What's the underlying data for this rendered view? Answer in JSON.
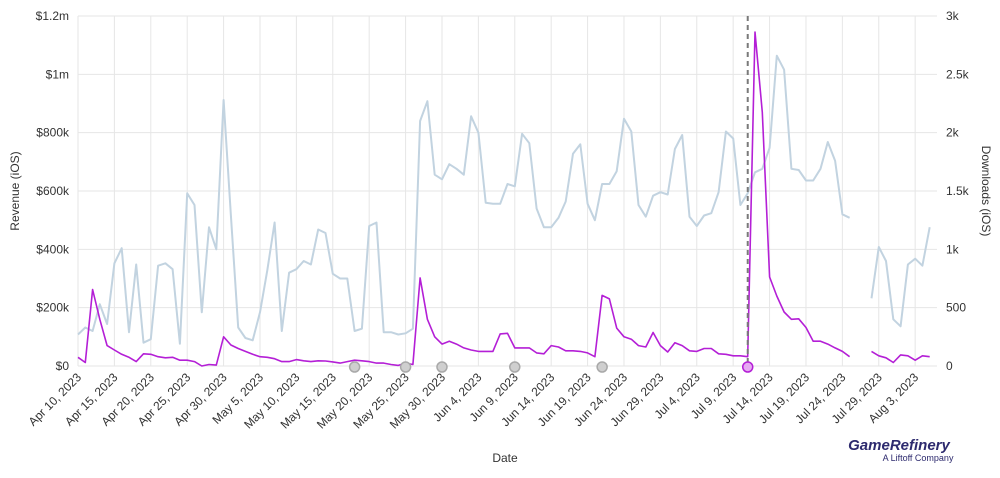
{
  "chart_data": {
    "type": "line",
    "xlabel": "Date",
    "ylabel_left": "Revenue (iOS)",
    "ylabel_right": "Downloads (iOS)",
    "y_left_ticks": [
      "$0",
      "$200k",
      "$400k",
      "$600k",
      "$800k",
      "$1m",
      "$1.2m"
    ],
    "y_left_range": [
      0,
      1200000
    ],
    "y_right_ticks": [
      "0",
      "500",
      "1k",
      "1.5k",
      "2k",
      "2.5k",
      "3k"
    ],
    "y_right_range": [
      0,
      3000
    ],
    "grid": true,
    "x_ticks": [
      "Apr 10, 2023",
      "Apr 15, 2023",
      "Apr 20, 2023",
      "Apr 25, 2023",
      "Apr 30, 2023",
      "May 5, 2023",
      "May 10, 2023",
      "May 15, 2023",
      "May 20, 2023",
      "May 25, 2023",
      "May 30, 2023",
      "Jun 4, 2023",
      "Jun 9, 2023",
      "Jun 14, 2023",
      "Jun 19, 2023",
      "Jun 24, 2023",
      "Jun 29, 2023",
      "Jul 4, 2023",
      "Jul 9, 2023",
      "Jul 14, 2023",
      "Jul 19, 2023",
      "Jul 24, 2023",
      "Jul 29, 2023",
      "Aug 3, 2023"
    ],
    "x_range": [
      "2023-04-10",
      "2023-08-06"
    ],
    "marker_line_date": "2023-07-11",
    "event_dates": [
      "2023-05-18",
      "2023-05-25",
      "2023-05-30",
      "2023-06-09",
      "2023-06-21"
    ],
    "highlighted_event_date": "2023-07-11",
    "series": [
      {
        "name": "Downloads (iOS)",
        "axis": "right",
        "color": "#c2d3e0",
        "points": [
          [
            "2023-04-10",
            270
          ],
          [
            "2023-04-11",
            330
          ],
          [
            "2023-04-12",
            300
          ],
          [
            "2023-04-13",
            530
          ],
          [
            "2023-04-14",
            360
          ],
          [
            "2023-04-15",
            880
          ],
          [
            "2023-04-16",
            1010
          ],
          [
            "2023-04-17",
            290
          ],
          [
            "2023-04-18",
            870
          ],
          [
            "2023-04-19",
            200
          ],
          [
            "2023-04-20",
            230
          ],
          [
            "2023-04-21",
            860
          ],
          [
            "2023-04-22",
            880
          ],
          [
            "2023-04-23",
            830
          ],
          [
            "2023-04-24",
            190
          ],
          [
            "2023-04-25",
            1480
          ],
          [
            "2023-04-26",
            1380
          ],
          [
            "2023-04-27",
            460
          ],
          [
            "2023-04-28",
            1190
          ],
          [
            "2023-04-29",
            1000
          ],
          [
            "2023-04-30",
            2280
          ],
          [
            "2023-05-01",
            1290
          ],
          [
            "2023-05-02",
            330
          ],
          [
            "2023-05-03",
            240
          ],
          [
            "2023-05-04",
            220
          ],
          [
            "2023-05-05",
            460
          ],
          [
            "2023-05-06",
            820
          ],
          [
            "2023-05-07",
            1230
          ],
          [
            "2023-05-08",
            300
          ],
          [
            "2023-05-09",
            800
          ],
          [
            "2023-05-10",
            830
          ],
          [
            "2023-05-11",
            900
          ],
          [
            "2023-05-12",
            870
          ],
          [
            "2023-05-13",
            1170
          ],
          [
            "2023-05-14",
            1140
          ],
          [
            "2023-05-15",
            790
          ],
          [
            "2023-05-16",
            750
          ],
          [
            "2023-05-17",
            750
          ],
          [
            "2023-05-18",
            300
          ],
          [
            "2023-05-19",
            320
          ],
          [
            "2023-05-20",
            1200
          ],
          [
            "2023-05-21",
            1230
          ],
          [
            "2023-05-22",
            290
          ],
          [
            "2023-05-23",
            290
          ],
          [
            "2023-05-24",
            270
          ],
          [
            "2023-05-25",
            280
          ],
          [
            "2023-05-26",
            320
          ],
          [
            "2023-05-27",
            2100
          ],
          [
            "2023-05-28",
            2270
          ],
          [
            "2023-05-29",
            1640
          ],
          [
            "2023-05-30",
            1600
          ],
          [
            "2023-05-31",
            1730
          ],
          [
            "2023-06-01",
            1690
          ],
          [
            "2023-06-02",
            1640
          ],
          [
            "2023-06-03",
            2140
          ],
          [
            "2023-06-04",
            2000
          ],
          [
            "2023-06-05",
            1400
          ],
          [
            "2023-06-06",
            1390
          ],
          [
            "2023-06-07",
            1390
          ],
          [
            "2023-06-08",
            1560
          ],
          [
            "2023-06-09",
            1540
          ],
          [
            "2023-06-10",
            1990
          ],
          [
            "2023-06-11",
            1910
          ],
          [
            "2023-06-12",
            1350
          ],
          [
            "2023-06-13",
            1190
          ],
          [
            "2023-06-14",
            1190
          ],
          [
            "2023-06-15",
            1270
          ],
          [
            "2023-06-16",
            1410
          ],
          [
            "2023-06-17",
            1820
          ],
          [
            "2023-06-18",
            1900
          ],
          [
            "2023-06-19",
            1390
          ],
          [
            "2023-06-20",
            1250
          ],
          [
            "2023-06-21",
            1560
          ],
          [
            "2023-06-22",
            1560
          ],
          [
            "2023-06-23",
            1670
          ],
          [
            "2023-06-24",
            2120
          ],
          [
            "2023-06-25",
            2010
          ],
          [
            "2023-06-26",
            1380
          ],
          [
            "2023-06-27",
            1280
          ],
          [
            "2023-06-28",
            1460
          ],
          [
            "2023-06-29",
            1490
          ],
          [
            "2023-06-30",
            1470
          ],
          [
            "2023-07-01",
            1860
          ],
          [
            "2023-07-02",
            1980
          ],
          [
            "2023-07-03",
            1280
          ],
          [
            "2023-07-04",
            1200
          ],
          [
            "2023-07-05",
            1290
          ],
          [
            "2023-07-06",
            1310
          ],
          [
            "2023-07-07",
            1490
          ],
          [
            "2023-07-08",
            2010
          ],
          [
            "2023-07-09",
            1950
          ],
          [
            "2023-07-10",
            1380
          ],
          [
            "2023-07-11",
            1480
          ],
          [
            "2023-07-12",
            1660
          ],
          [
            "2023-07-13",
            1690
          ],
          [
            "2023-07-14",
            1870
          ],
          [
            "2023-07-15",
            2660
          ],
          [
            "2023-07-16",
            2540
          ],
          [
            "2023-07-17",
            1690
          ],
          [
            "2023-07-18",
            1680
          ],
          [
            "2023-07-19",
            1590
          ],
          [
            "2023-07-20",
            1590
          ],
          [
            "2023-07-21",
            1690
          ],
          [
            "2023-07-22",
            1920
          ],
          [
            "2023-07-23",
            1760
          ],
          [
            "2023-07-24",
            1300
          ],
          [
            "2023-07-25",
            1270
          ],
          null,
          [
            "2023-07-28",
            580
          ],
          [
            "2023-07-29",
            1020
          ],
          [
            "2023-07-30",
            900
          ],
          [
            "2023-07-31",
            400
          ],
          [
            "2023-08-01",
            340
          ],
          [
            "2023-08-02",
            870
          ],
          [
            "2023-08-03",
            920
          ],
          [
            "2023-08-04",
            860
          ],
          [
            "2023-08-05",
            1190
          ]
        ]
      },
      {
        "name": "Revenue (iOS)",
        "axis": "left",
        "color": "#b41fd6",
        "points": [
          [
            "2023-04-10",
            30000
          ],
          [
            "2023-04-11",
            12000
          ],
          [
            "2023-04-12",
            262000
          ],
          [
            "2023-04-13",
            160000
          ],
          [
            "2023-04-14",
            70000
          ],
          [
            "2023-04-15",
            55000
          ],
          [
            "2023-04-16",
            40000
          ],
          [
            "2023-04-17",
            30000
          ],
          [
            "2023-04-18",
            15000
          ],
          [
            "2023-04-19",
            42000
          ],
          [
            "2023-04-20",
            40000
          ],
          [
            "2023-04-21",
            32000
          ],
          [
            "2023-04-22",
            28000
          ],
          [
            "2023-04-23",
            30000
          ],
          [
            "2023-04-24",
            20000
          ],
          [
            "2023-04-25",
            20000
          ],
          [
            "2023-04-26",
            15000
          ],
          [
            "2023-04-27",
            0
          ],
          [
            "2023-04-28",
            5000
          ],
          [
            "2023-04-29",
            3000
          ],
          [
            "2023-04-30",
            100000
          ],
          [
            "2023-05-01",
            72000
          ],
          [
            "2023-05-02",
            60000
          ],
          [
            "2023-05-03",
            50000
          ],
          [
            "2023-05-04",
            40000
          ],
          [
            "2023-05-05",
            32000
          ],
          [
            "2023-05-06",
            30000
          ],
          [
            "2023-05-07",
            25000
          ],
          [
            "2023-05-08",
            15000
          ],
          [
            "2023-05-09",
            15000
          ],
          [
            "2023-05-10",
            22000
          ],
          [
            "2023-05-11",
            18000
          ],
          [
            "2023-05-12",
            15000
          ],
          [
            "2023-05-13",
            18000
          ],
          [
            "2023-05-14",
            17000
          ],
          [
            "2023-05-15",
            14000
          ],
          [
            "2023-05-16",
            10000
          ],
          [
            "2023-05-17",
            15000
          ],
          [
            "2023-05-18",
            20000
          ],
          [
            "2023-05-19",
            18000
          ],
          [
            "2023-05-20",
            15000
          ],
          [
            "2023-05-21",
            10000
          ],
          [
            "2023-05-22",
            10000
          ],
          [
            "2023-05-23",
            5000
          ],
          [
            "2023-05-24",
            2000
          ],
          [
            "2023-05-25",
            10000
          ],
          [
            "2023-05-26",
            5000
          ],
          [
            "2023-05-27",
            302000
          ],
          [
            "2023-05-28",
            160000
          ],
          [
            "2023-05-29",
            100000
          ],
          [
            "2023-05-30",
            75000
          ],
          [
            "2023-05-31",
            85000
          ],
          [
            "2023-06-01",
            75000
          ],
          [
            "2023-06-02",
            62000
          ],
          [
            "2023-06-03",
            55000
          ],
          [
            "2023-06-04",
            50000
          ],
          [
            "2023-06-05",
            50000
          ],
          [
            "2023-06-06",
            50000
          ],
          [
            "2023-06-07",
            110000
          ],
          [
            "2023-06-08",
            112000
          ],
          [
            "2023-06-09",
            62000
          ],
          [
            "2023-06-10",
            62000
          ],
          [
            "2023-06-11",
            62000
          ],
          [
            "2023-06-12",
            45000
          ],
          [
            "2023-06-13",
            42000
          ],
          [
            "2023-06-14",
            70000
          ],
          [
            "2023-06-15",
            65000
          ],
          [
            "2023-06-16",
            52000
          ],
          [
            "2023-06-17",
            52000
          ],
          [
            "2023-06-18",
            50000
          ],
          [
            "2023-06-19",
            45000
          ],
          [
            "2023-06-20",
            32000
          ],
          [
            "2023-06-21",
            242000
          ],
          [
            "2023-06-22",
            230000
          ],
          [
            "2023-06-23",
            130000
          ],
          [
            "2023-06-24",
            100000
          ],
          [
            "2023-06-25",
            92000
          ],
          [
            "2023-06-26",
            70000
          ],
          [
            "2023-06-27",
            65000
          ],
          [
            "2023-06-28",
            115000
          ],
          [
            "2023-06-29",
            70000
          ],
          [
            "2023-06-30",
            48000
          ],
          [
            "2023-07-01",
            80000
          ],
          [
            "2023-07-02",
            70000
          ],
          [
            "2023-07-03",
            52000
          ],
          [
            "2023-07-04",
            50000
          ],
          [
            "2023-07-05",
            60000
          ],
          [
            "2023-07-06",
            60000
          ],
          [
            "2023-07-07",
            42000
          ],
          [
            "2023-07-08",
            40000
          ],
          [
            "2023-07-09",
            35000
          ],
          [
            "2023-07-10",
            35000
          ],
          [
            "2023-07-11",
            32000
          ],
          [
            "2023-07-12",
            1145000
          ],
          [
            "2023-07-13",
            870000
          ],
          [
            "2023-07-14",
            305000
          ],
          [
            "2023-07-15",
            240000
          ],
          [
            "2023-07-16",
            185000
          ],
          [
            "2023-07-17",
            160000
          ],
          [
            "2023-07-18",
            162000
          ],
          [
            "2023-07-19",
            132000
          ],
          [
            "2023-07-20",
            85000
          ],
          [
            "2023-07-21",
            85000
          ],
          [
            "2023-07-22",
            75000
          ],
          [
            "2023-07-23",
            62000
          ],
          [
            "2023-07-24",
            50000
          ],
          [
            "2023-07-25",
            32000
          ],
          null,
          [
            "2023-07-28",
            50000
          ],
          [
            "2023-07-29",
            35000
          ],
          [
            "2023-07-30",
            28000
          ],
          [
            "2023-07-31",
            12000
          ],
          [
            "2023-08-01",
            38000
          ],
          [
            "2023-08-02",
            35000
          ],
          [
            "2023-08-03",
            20000
          ],
          [
            "2023-08-04",
            35000
          ],
          [
            "2023-08-05",
            32000
          ]
        ]
      }
    ]
  },
  "branding": {
    "logo_main": "GameRefinery",
    "logo_sub": "A Liftoff Company",
    "logo_color": "#2d2a6e"
  }
}
